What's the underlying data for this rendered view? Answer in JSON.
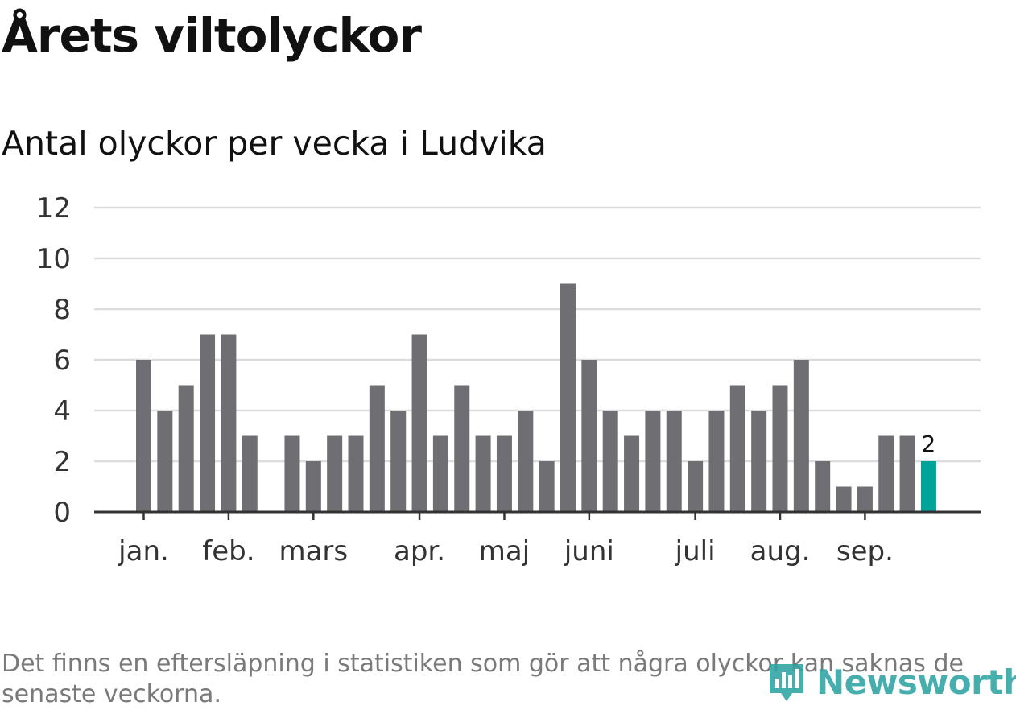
{
  "header": {
    "title": "Årets viltolyckor",
    "subtitle": "Antal olyckor per vecka i Ludvika"
  },
  "footnote": "Det finns en eftersläpning i statistiken som gör att några olyckor kan saknas de senaste veckorna.",
  "logo": {
    "text": "Newsworthy",
    "icon": "bar-chart-icon",
    "color": "#2ea3a3"
  },
  "chart_data": {
    "type": "bar",
    "title": "Antal olyckor per vecka i Ludvika",
    "xlabel": "",
    "ylabel": "",
    "ylim": [
      0,
      12
    ],
    "yticks": [
      0,
      2,
      4,
      6,
      8,
      10,
      12
    ],
    "grid": true,
    "legend": "none",
    "month_labels": [
      {
        "label": "jan.",
        "at_bar": 0
      },
      {
        "label": "feb.",
        "at_bar": 4
      },
      {
        "label": "mars",
        "at_bar": 8
      },
      {
        "label": "apr.",
        "at_bar": 13
      },
      {
        "label": "maj",
        "at_bar": 17
      },
      {
        "label": "juni",
        "at_bar": 21
      },
      {
        "label": "juli",
        "at_bar": 26
      },
      {
        "label": "aug.",
        "at_bar": 30
      },
      {
        "label": "sep.",
        "at_bar": 34
      }
    ],
    "values": [
      6,
      4,
      5,
      7,
      7,
      3,
      null,
      3,
      2,
      3,
      3,
      5,
      4,
      7,
      3,
      5,
      3,
      3,
      4,
      2,
      9,
      6,
      4,
      3,
      4,
      4,
      2,
      4,
      5,
      4,
      5,
      6,
      2,
      1,
      1,
      3,
      3,
      2
    ],
    "bar_color": "#6e6e73",
    "highlight_color": "#00a398",
    "highlight_index": 37,
    "highlight_label": "2"
  }
}
